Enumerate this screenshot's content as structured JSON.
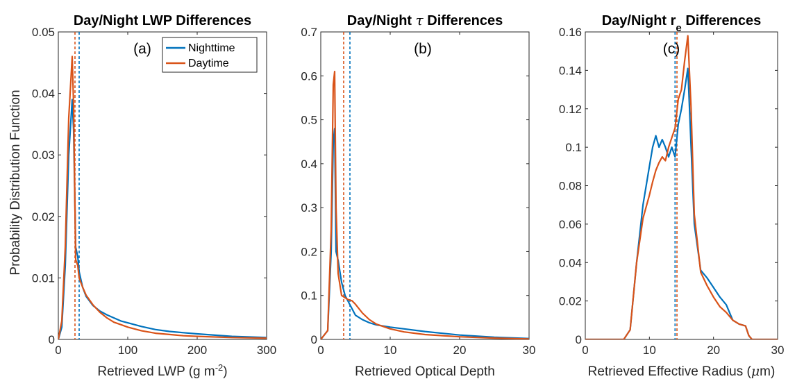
{
  "colors": {
    "nighttime": "#0072BD",
    "daytime": "#D95319",
    "axis": "#262626"
  },
  "ylabel": "Probability Distribution Function",
  "chart_data": [
    {
      "type": "line",
      "panel": "(a)",
      "title": "Day/Night LWP Differences",
      "title_parts": [
        {
          "t": "Day/Night LWP Differences"
        }
      ],
      "xlabel": "Retrieved LWP (g m",
      "xlabel_sup": "-2",
      "xlabel_tail": ")",
      "ylabel": "Probability Distribution Function",
      "xlim": [
        0,
        300
      ],
      "ylim": [
        0,
        0.05
      ],
      "xticks": [
        0,
        100,
        200,
        300
      ],
      "xtick_labels": [
        "0",
        "100",
        "200",
        "300"
      ],
      "yticks": [
        0,
        0.01,
        0.02,
        0.03,
        0.04,
        0.05
      ],
      "ytick_labels": [
        "0",
        "0.01",
        "0.02",
        "0.03",
        "0.04",
        "0.05"
      ],
      "legend": {
        "placement": "top-right",
        "entries": [
          "Nighttime",
          "Daytime"
        ]
      },
      "series": [
        {
          "name": "Nighttime",
          "color": "#0072BD",
          "x": [
            0,
            5,
            10,
            15,
            20,
            22,
            25,
            28,
            30,
            35,
            40,
            50,
            60,
            70,
            80,
            90,
            100,
            120,
            140,
            160,
            180,
            200,
            250,
            300
          ],
          "y": [
            0,
            0.002,
            0.012,
            0.03,
            0.039,
            0.034,
            0.015,
            0.0135,
            0.011,
            0.0085,
            0.007,
            0.0055,
            0.0046,
            0.004,
            0.0035,
            0.003,
            0.0027,
            0.0021,
            0.0016,
            0.0013,
            0.0011,
            0.0009,
            0.0005,
            0.0003
          ]
        },
        {
          "name": "Daytime",
          "color": "#D95319",
          "x": [
            0,
            5,
            10,
            15,
            20,
            22,
            25,
            28,
            30,
            35,
            40,
            50,
            60,
            70,
            80,
            90,
            100,
            120,
            140,
            160,
            180,
            200,
            250,
            300
          ],
          "y": [
            0,
            0.003,
            0.015,
            0.036,
            0.046,
            0.038,
            0.013,
            0.012,
            0.01,
            0.0085,
            0.0072,
            0.0056,
            0.0044,
            0.0035,
            0.0028,
            0.0024,
            0.002,
            0.0014,
            0.001,
            0.0008,
            0.0006,
            0.0005,
            0.0003,
            0.0002
          ]
        }
      ],
      "means": {
        "Nighttime": 30,
        "Daytime": 24
      }
    },
    {
      "type": "line",
      "panel": "(b)",
      "title": "Day/Night τ Differences",
      "title_parts": [
        {
          "t": "Day/Night "
        },
        {
          "t": "τ",
          "italic": true
        },
        {
          "t": " Differences"
        }
      ],
      "xlabel": "Retrieved Optical Depth",
      "xlabel_sup": "",
      "xlabel_tail": "",
      "xlim": [
        0,
        30
      ],
      "ylim": [
        0,
        0.7
      ],
      "xticks": [
        0,
        10,
        20,
        30
      ],
      "xtick_labels": [
        "0",
        "10",
        "20",
        "30"
      ],
      "yticks": [
        0,
        0.1,
        0.2,
        0.3,
        0.4,
        0.5,
        0.6,
        0.7
      ],
      "ytick_labels": [
        "0",
        "0.1",
        "0.2",
        "0.3",
        "0.4",
        "0.5",
        "0.6",
        "0.7"
      ],
      "series": [
        {
          "name": "Nighttime",
          "color": "#0072BD",
          "x": [
            0,
            1,
            1.5,
            1.8,
            2.0,
            2.2,
            2.5,
            3.0,
            3.5,
            4.0,
            4.5,
            5,
            6,
            7,
            8,
            10,
            12,
            15,
            20,
            25,
            30
          ],
          "y": [
            0,
            0.02,
            0.2,
            0.45,
            0.48,
            0.2,
            0.18,
            0.13,
            0.1,
            0.085,
            0.07,
            0.055,
            0.045,
            0.038,
            0.033,
            0.028,
            0.024,
            0.018,
            0.01,
            0.005,
            0.002
          ]
        },
        {
          "name": "Daytime",
          "color": "#D95319",
          "x": [
            0,
            1,
            1.5,
            1.8,
            2.0,
            2.2,
            2.5,
            3.0,
            3.5,
            4.0,
            4.5,
            5,
            6,
            7,
            8,
            10,
            12,
            15,
            20,
            25,
            30
          ],
          "y": [
            0,
            0.02,
            0.25,
            0.58,
            0.61,
            0.3,
            0.15,
            0.1,
            0.095,
            0.09,
            0.088,
            0.08,
            0.06,
            0.045,
            0.035,
            0.024,
            0.017,
            0.011,
            0.006,
            0.003,
            0.001
          ]
        }
      ],
      "means": {
        "Nighttime": 4.2,
        "Daytime": 3.3
      }
    },
    {
      "type": "line",
      "panel": "(c)",
      "title": "Day/Night re Differences",
      "title_parts": [
        {
          "t": "Day/Night r"
        },
        {
          "t": "e",
          "sub": true
        },
        {
          "t": " Differences"
        }
      ],
      "xlabel": "Retrieved Effective Radius (",
      "xlabel_sup": "",
      "xlabel_mu": "μ",
      "xlabel_tail": "m)",
      "xlim": [
        0,
        30
      ],
      "ylim": [
        0,
        0.16
      ],
      "xticks": [
        0,
        10,
        20,
        30
      ],
      "xtick_labels": [
        "0",
        "10",
        "20",
        "30"
      ],
      "yticks": [
        0,
        0.02,
        0.04,
        0.06,
        0.08,
        0.1,
        0.12,
        0.14,
        0.16
      ],
      "ytick_labels": [
        "0",
        "0.02",
        "0.04",
        "0.06",
        "0.08",
        "0.1",
        "0.12",
        "0.14",
        "0.16"
      ],
      "series": [
        {
          "name": "Nighttime",
          "color": "#0072BD",
          "x": [
            0,
            6,
            7,
            8,
            9,
            10,
            10.5,
            11,
            11.5,
            12,
            12.5,
            13,
            13.5,
            14,
            14.5,
            15,
            15.5,
            16,
            16.5,
            17,
            18,
            19,
            20,
            21,
            22,
            23,
            24,
            25,
            25.5,
            26,
            27,
            30
          ],
          "y": [
            0,
            0,
            0.005,
            0.04,
            0.07,
            0.09,
            0.1,
            0.106,
            0.1,
            0.104,
            0.1,
            0.095,
            0.1,
            0.095,
            0.112,
            0.12,
            0.13,
            0.141,
            0.1,
            0.06,
            0.036,
            0.032,
            0.027,
            0.022,
            0.018,
            0.01,
            0.008,
            0.007,
            0.002,
            0,
            0,
            0
          ]
        },
        {
          "name": "Daytime",
          "color": "#D95319",
          "x": [
            0,
            6,
            7,
            8,
            9,
            10,
            10.5,
            11,
            11.5,
            12,
            12.5,
            13,
            13.5,
            14,
            14.5,
            15,
            15.5,
            16,
            16.5,
            17,
            18,
            19,
            20,
            21,
            22,
            23,
            24,
            25,
            25.5,
            26,
            27,
            30
          ],
          "y": [
            0,
            0,
            0.005,
            0.04,
            0.063,
            0.075,
            0.082,
            0.088,
            0.092,
            0.095,
            0.093,
            0.1,
            0.105,
            0.11,
            0.125,
            0.13,
            0.145,
            0.158,
            0.12,
            0.065,
            0.035,
            0.028,
            0.022,
            0.017,
            0.014,
            0.01,
            0.008,
            0.007,
            0.002,
            0,
            0,
            0
          ]
        }
      ],
      "means": {
        "Nighttime": 14.0,
        "Daytime": 14.3
      }
    }
  ]
}
